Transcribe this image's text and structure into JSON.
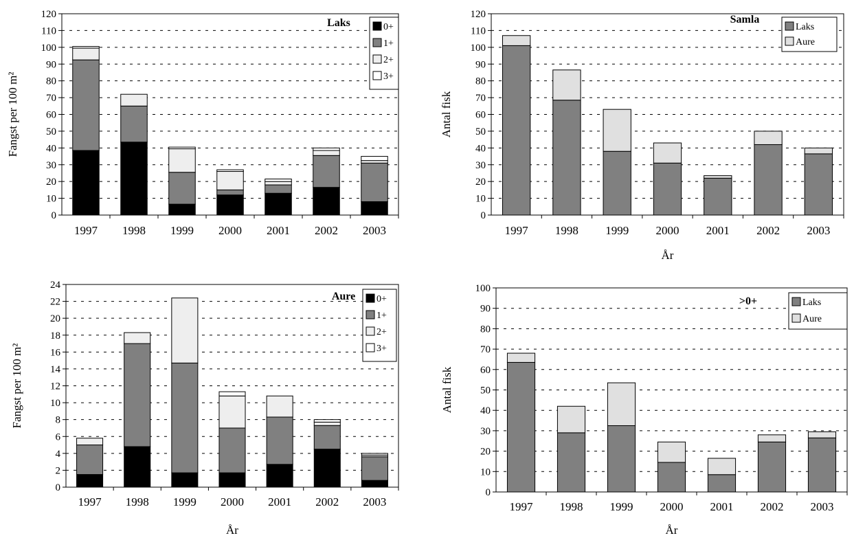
{
  "chart_data": [
    {
      "type": "bar",
      "stacked": true,
      "title": "Laks",
      "xlabel": "",
      "ylabel": "Fangst per 100 m²",
      "ylim": [
        0,
        120
      ],
      "ytick_step": 10,
      "grid": true,
      "legend": "top-right",
      "categories": [
        "1997",
        "1998",
        "1999",
        "2000",
        "2001",
        "2002",
        "2003"
      ],
      "series": [
        {
          "name": "0+",
          "color": "#000000",
          "values": [
            38.5,
            43.5,
            6.5,
            12,
            13,
            16.5,
            8
          ]
        },
        {
          "name": "1+",
          "color": "#808080",
          "values": [
            54,
            21.5,
            19,
            3,
            5,
            19,
            23
          ]
        },
        {
          "name": "2+",
          "color": "#eeeeee",
          "values": [
            7,
            7,
            14,
            11,
            2,
            3,
            1.5
          ]
        },
        {
          "name": "3+",
          "color": "#ffffff",
          "values": [
            1,
            0,
            1,
            1,
            1.5,
            1.5,
            2.5
          ]
        }
      ]
    },
    {
      "type": "bar",
      "stacked": true,
      "title": "Samla",
      "xlabel": "År",
      "ylabel": "Antal fisk",
      "ylim": [
        0,
        120
      ],
      "ytick_step": 10,
      "grid": true,
      "legend": "top-right",
      "categories": [
        "1997",
        "1998",
        "1999",
        "2000",
        "2001",
        "2002",
        "2003"
      ],
      "series": [
        {
          "name": "Laks",
          "color": "#808080",
          "values": [
            101,
            68.5,
            38,
            31,
            22,
            42,
            36.5
          ]
        },
        {
          "name": "Aure",
          "color": "#e0e0e0",
          "values": [
            6,
            18,
            25,
            12,
            1.5,
            8,
            3.5
          ]
        }
      ]
    },
    {
      "type": "bar",
      "stacked": true,
      "title": "Aure",
      "xlabel": "År",
      "ylabel": "Fangst per 100 m²",
      "ylim": [
        0,
        24
      ],
      "ytick_step": 2,
      "grid": true,
      "legend": "top-right",
      "categories": [
        "1997",
        "1998",
        "1999",
        "2000",
        "2001",
        "2002",
        "2003"
      ],
      "series": [
        {
          "name": "0+",
          "color": "#000000",
          "values": [
            1.5,
            4.8,
            1.7,
            1.7,
            2.7,
            4.5,
            0.8
          ]
        },
        {
          "name": "1+",
          "color": "#808080",
          "values": [
            3.5,
            12.2,
            13,
            5.3,
            5.6,
            2.8,
            2.8
          ]
        },
        {
          "name": "2+",
          "color": "#eeeeee",
          "values": [
            0.8,
            1.3,
            7.7,
            3.8,
            2.5,
            0.4,
            0.2
          ]
        },
        {
          "name": "3+",
          "color": "#ffffff",
          "values": [
            0,
            0,
            0,
            0.5,
            0,
            0.3,
            0.2
          ]
        }
      ]
    },
    {
      "type": "bar",
      "stacked": true,
      "title": ">0+",
      "xlabel": "År",
      "ylabel": "Antal fisk",
      "ylim": [
        0,
        100
      ],
      "ytick_step": 10,
      "grid": true,
      "legend": "top-right",
      "categories": [
        "1997",
        "1998",
        "1999",
        "2000",
        "2001",
        "2002",
        "2003"
      ],
      "series": [
        {
          "name": "Laks",
          "color": "#808080",
          "values": [
            63.5,
            29,
            32.5,
            14.5,
            8.5,
            24.5,
            26.5
          ]
        },
        {
          "name": "Aure",
          "color": "#e0e0e0",
          "values": [
            4.5,
            13,
            21,
            10,
            8,
            3.5,
            3
          ]
        }
      ]
    }
  ]
}
